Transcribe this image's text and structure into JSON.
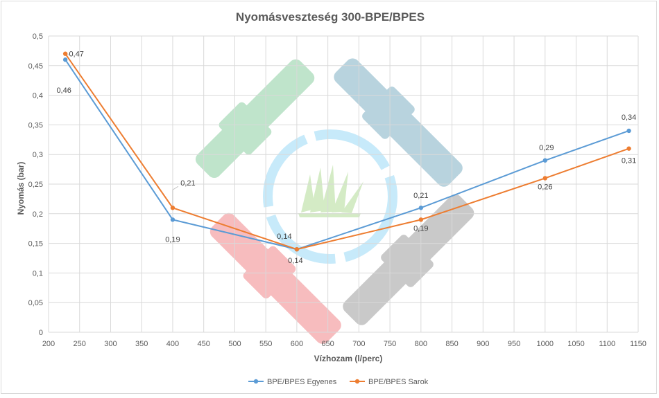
{
  "chart_data": {
    "type": "line",
    "title": "Nyomásveszteség 300-BPE/BPES",
    "xlabel": "Vízhozam (l/perc)",
    "ylabel": "Nyomás (bar)",
    "xlim": [
      200,
      1150
    ],
    "ylim": [
      0,
      0.5
    ],
    "x_ticks": [
      "200",
      "250",
      "300",
      "350",
      "400",
      "450",
      "500",
      "550",
      "600",
      "650",
      "700",
      "750",
      "800",
      "850",
      "900",
      "950",
      "1000",
      "1050",
      "1100",
      "1150"
    ],
    "y_ticks": [
      "0",
      "0,05",
      "0,1",
      "0,15",
      "0,2",
      "0,25",
      "0,3",
      "0,35",
      "0,4",
      "0,45",
      "0,5"
    ],
    "grid": true,
    "legend_position": "bottom",
    "series": [
      {
        "name": "BPE/BPES Egyenes",
        "color": "#5b9bd5",
        "x": [
          227,
          400,
          600,
          800,
          1000,
          1135
        ],
        "y": [
          0.46,
          0.19,
          0.14,
          0.21,
          0.29,
          0.34
        ],
        "labels": [
          "0,46",
          "0,19",
          "0,14",
          "0,21",
          "0,29",
          "0,34"
        ]
      },
      {
        "name": "BPE/BPES Sarok",
        "color": "#ed7d31",
        "x": [
          227,
          400,
          600,
          800,
          1000,
          1135
        ],
        "y": [
          0.47,
          0.21,
          0.14,
          0.19,
          0.26,
          0.31
        ],
        "labels": [
          "0,47",
          "0,21",
          "0,14",
          "0,19",
          "0,26",
          "0,31"
        ]
      }
    ]
  }
}
